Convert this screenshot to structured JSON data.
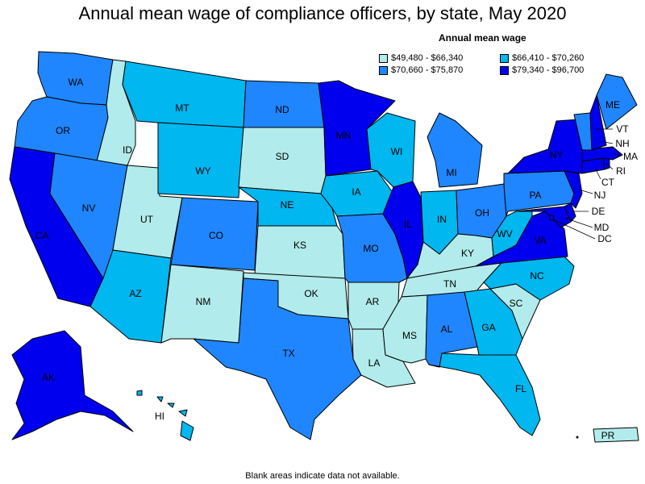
{
  "title": "Annual mean wage of compliance officers, by state, May 2020",
  "legend": {
    "title": "Annual mean wage",
    "bins": [
      {
        "label": "$49,480 - $66,340",
        "color": "#b2ebeb"
      },
      {
        "label": "$66,410 - $70,260",
        "color": "#00b7ef"
      },
      {
        "label": "$70,660 - $75,870",
        "color": "#1f86ff"
      },
      {
        "label": "$79,340 - $96,700",
        "color": "#0000ee"
      }
    ]
  },
  "footnote": "Blank areas indicate data not available.",
  "states": [
    {
      "abbr": "WA",
      "bin": 2
    },
    {
      "abbr": "OR",
      "bin": 2
    },
    {
      "abbr": "CA",
      "bin": 3
    },
    {
      "abbr": "ID",
      "bin": 0
    },
    {
      "abbr": "NV",
      "bin": 2
    },
    {
      "abbr": "UT",
      "bin": 0
    },
    {
      "abbr": "AZ",
      "bin": 1
    },
    {
      "abbr": "MT",
      "bin": 1
    },
    {
      "abbr": "WY",
      "bin": 1
    },
    {
      "abbr": "CO",
      "bin": 2
    },
    {
      "abbr": "NM",
      "bin": 0
    },
    {
      "abbr": "ND",
      "bin": 2
    },
    {
      "abbr": "SD",
      "bin": 0
    },
    {
      "abbr": "NE",
      "bin": 1
    },
    {
      "abbr": "KS",
      "bin": 0
    },
    {
      "abbr": "OK",
      "bin": 0
    },
    {
      "abbr": "TX",
      "bin": 2
    },
    {
      "abbr": "MN",
      "bin": 3
    },
    {
      "abbr": "IA",
      "bin": 1
    },
    {
      "abbr": "MO",
      "bin": 2
    },
    {
      "abbr": "AR",
      "bin": 0
    },
    {
      "abbr": "LA",
      "bin": 0
    },
    {
      "abbr": "WI",
      "bin": 1
    },
    {
      "abbr": "IL",
      "bin": 3
    },
    {
      "abbr": "MI",
      "bin": 2
    },
    {
      "abbr": "IN",
      "bin": 1
    },
    {
      "abbr": "OH",
      "bin": 2
    },
    {
      "abbr": "KY",
      "bin": 0
    },
    {
      "abbr": "TN",
      "bin": 0
    },
    {
      "abbr": "MS",
      "bin": 0
    },
    {
      "abbr": "AL",
      "bin": 2
    },
    {
      "abbr": "GA",
      "bin": 1
    },
    {
      "abbr": "FL",
      "bin": 1
    },
    {
      "abbr": "SC",
      "bin": 0
    },
    {
      "abbr": "NC",
      "bin": 1
    },
    {
      "abbr": "VA",
      "bin": 3
    },
    {
      "abbr": "WV",
      "bin": 1
    },
    {
      "abbr": "PA",
      "bin": 2
    },
    {
      "abbr": "NY",
      "bin": 3
    },
    {
      "abbr": "VT",
      "bin": 2
    },
    {
      "abbr": "NH",
      "bin": 3
    },
    {
      "abbr": "ME",
      "bin": 2
    },
    {
      "abbr": "MA",
      "bin": 3
    },
    {
      "abbr": "RI",
      "bin": 3
    },
    {
      "abbr": "CT",
      "bin": 3
    },
    {
      "abbr": "NJ",
      "bin": 3
    },
    {
      "abbr": "DE",
      "bin": 3
    },
    {
      "abbr": "MD",
      "bin": 3
    },
    {
      "abbr": "DC",
      "bin": 3
    },
    {
      "abbr": "AK",
      "bin": 3
    },
    {
      "abbr": "HI",
      "bin": 1
    },
    {
      "abbr": "PR",
      "bin": 0
    }
  ]
}
